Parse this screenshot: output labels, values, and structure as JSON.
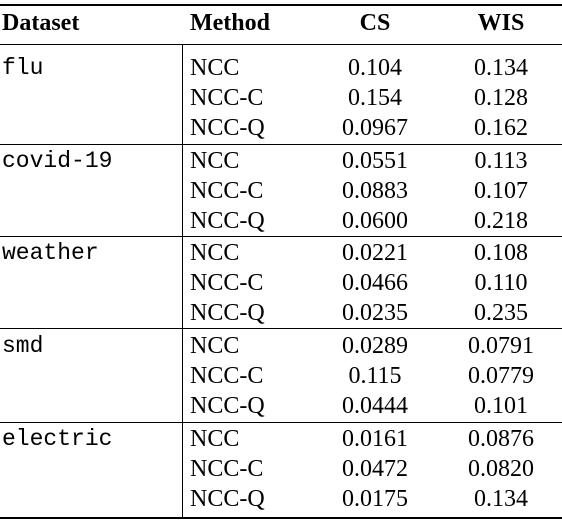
{
  "header": {
    "dataset": "Dataset",
    "method": "Method",
    "cs": "CS",
    "wis": "WIS"
  },
  "groups": [
    {
      "dataset": "flu",
      "rows": [
        {
          "method": "NCC",
          "cs": "0.104",
          "wis": "0.134"
        },
        {
          "method": "NCC-C",
          "cs": "0.154",
          "wis": "0.128"
        },
        {
          "method": "NCC-Q",
          "cs": "0.0967",
          "wis": "0.162"
        }
      ]
    },
    {
      "dataset": "covid-19",
      "rows": [
        {
          "method": "NCC",
          "cs": "0.0551",
          "wis": "0.113"
        },
        {
          "method": "NCC-C",
          "cs": "0.0883",
          "wis": "0.107"
        },
        {
          "method": "NCC-Q",
          "cs": "0.0600",
          "wis": "0.218"
        }
      ]
    },
    {
      "dataset": "weather",
      "rows": [
        {
          "method": "NCC",
          "cs": "0.0221",
          "wis": "0.108"
        },
        {
          "method": "NCC-C",
          "cs": "0.0466",
          "wis": "0.110"
        },
        {
          "method": "NCC-Q",
          "cs": "0.0235",
          "wis": "0.235"
        }
      ]
    },
    {
      "dataset": "smd",
      "rows": [
        {
          "method": "NCC",
          "cs": "0.0289",
          "wis": "0.0791"
        },
        {
          "method": "NCC-C",
          "cs": "0.115",
          "wis": "0.0779"
        },
        {
          "method": "NCC-Q",
          "cs": "0.0444",
          "wis": "0.101"
        }
      ]
    },
    {
      "dataset": "electric",
      "rows": [
        {
          "method": "NCC",
          "cs": "0.0161",
          "wis": "0.0876"
        },
        {
          "method": "NCC-C",
          "cs": "0.0472",
          "wis": "0.0820"
        },
        {
          "method": "NCC-Q",
          "cs": "0.0175",
          "wis": "0.134"
        }
      ]
    }
  ]
}
